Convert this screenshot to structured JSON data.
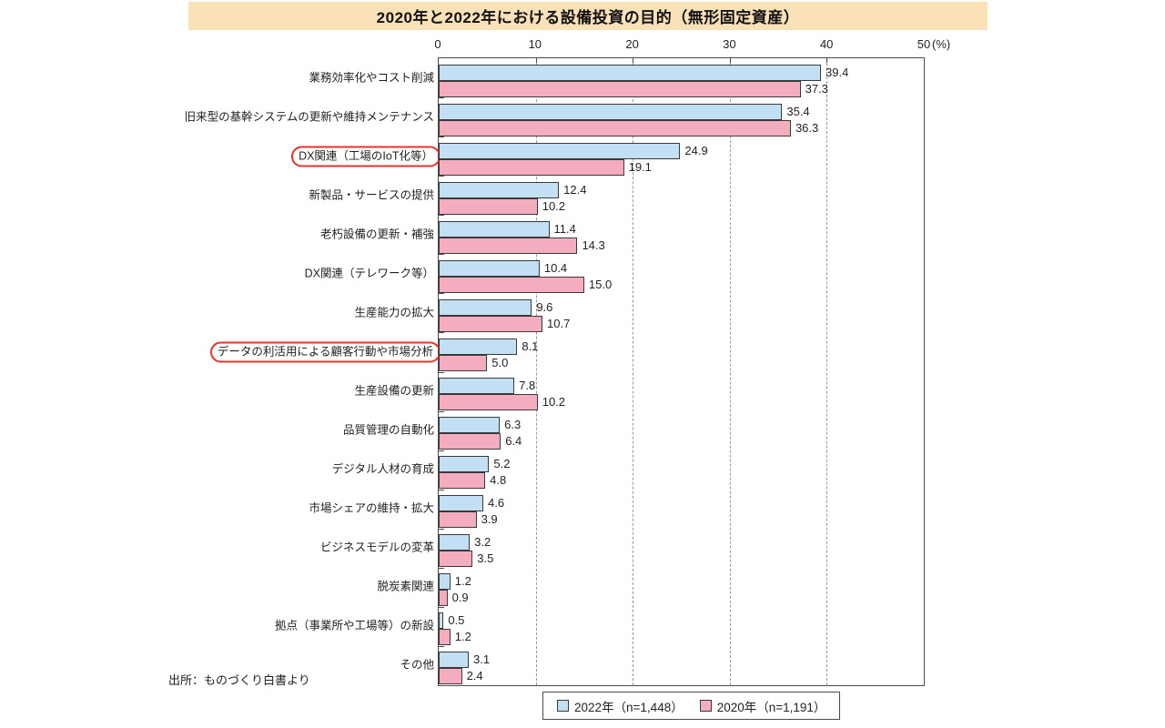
{
  "title": "2020年と2022年における設備投資の目的（無形固定資産）",
  "source_note": "出所：ものづくり白書より",
  "x_axis": {
    "unit_label": "(%)",
    "ticks": [
      0,
      10,
      20,
      30,
      40,
      50
    ],
    "min": 0,
    "max": 50,
    "gridlines": [
      10,
      20,
      30,
      40
    ]
  },
  "legend": {
    "items": [
      {
        "label": "2022年（n=1,448）",
        "color": "#C3DFF3"
      },
      {
        "label": "2020年（n=1,191）",
        "color": "#F4ACBF"
      }
    ]
  },
  "chart_data": {
    "type": "bar",
    "orientation": "horizontal",
    "title": "2020年と2022年における設備投資の目的（無形固定資産）",
    "xlabel": "(%)",
    "xlim": [
      0,
      50
    ],
    "grid": "dashed-vertical at 10/20/30/40",
    "legend_position": "bottom-right",
    "value_labels": true,
    "categories": [
      {
        "label": "業務効率化やコスト削減",
        "circled": false
      },
      {
        "label": "旧来型の基幹システムの更新や維持メンテナンス",
        "circled": false
      },
      {
        "label": "DX関連（工場のIoT化等）",
        "circled": true
      },
      {
        "label": "新製品・サービスの提供",
        "circled": false
      },
      {
        "label": "老朽設備の更新・補強",
        "circled": false
      },
      {
        "label": "DX関連（テレワーク等）",
        "circled": false
      },
      {
        "label": "生産能力の拡大",
        "circled": false
      },
      {
        "label": "データの利活用による顧客行動や市場分析",
        "circled": true
      },
      {
        "label": "生産設備の更新",
        "circled": false
      },
      {
        "label": "品質管理の自動化",
        "circled": false
      },
      {
        "label": "デジタル人材の育成",
        "circled": false
      },
      {
        "label": "市場シェアの維持・拡大",
        "circled": false
      },
      {
        "label": "ビジネスモデルの変革",
        "circled": false
      },
      {
        "label": "脱炭素関連",
        "circled": false
      },
      {
        "label": "拠点（事業所や工場等）の新設",
        "circled": false
      },
      {
        "label": "その他",
        "circled": false
      }
    ],
    "series": [
      {
        "name": "2022年（n=1,448）",
        "color": "#C3DFF3",
        "values": [
          39.4,
          35.4,
          24.9,
          12.4,
          11.4,
          10.4,
          9.6,
          8.1,
          7.8,
          6.3,
          5.2,
          4.6,
          3.2,
          1.2,
          0.5,
          3.1
        ]
      },
      {
        "name": "2020年（n=1,191）",
        "color": "#F4ACBF",
        "values": [
          37.3,
          36.3,
          19.1,
          10.2,
          14.3,
          15.0,
          10.7,
          5.0,
          10.2,
          6.4,
          4.8,
          3.9,
          3.5,
          0.9,
          1.2,
          2.4
        ]
      }
    ]
  },
  "style": {
    "title_band_color": "#FBE1B7",
    "bar_border_color": "#3a3a3a",
    "frame_color": "#4a4a4a",
    "gridline_color": "#999999",
    "circle_color": "#E5332D",
    "text_color": "#222222"
  }
}
